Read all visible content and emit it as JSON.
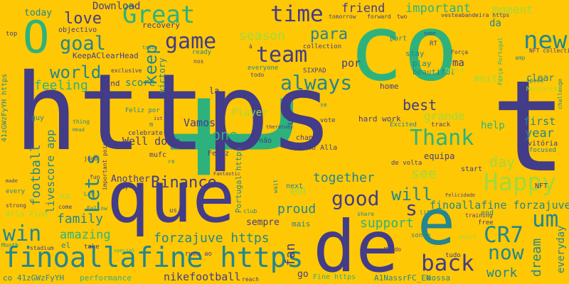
{
  "palette": {
    "background": "#FFC805",
    "navy": "#433C88",
    "teal": "#24868E",
    "green": "#2DB27D",
    "lime": "#9FDA3A",
    "yellowgreen": "#C7E020",
    "pale": "#FDE725"
  },
  "words": [
    {
      "text": "t",
      "color": "green"
    },
    {
      "text": "co",
      "color": "green"
    },
    {
      "text": "https",
      "color": "navy"
    },
    {
      "text": "t",
      "color": "navy"
    },
    {
      "text": "que",
      "color": "navy"
    },
    {
      "text": "de",
      "color": "navy"
    },
    {
      "text": "e",
      "color": "teal"
    },
    {
      "text": "O",
      "color": "green"
    },
    {
      "text": "goal",
      "color": "teal"
    },
    {
      "text": "finoallafine https",
      "color": "teal"
    },
    {
      "text": "Great",
      "color": "green"
    },
    {
      "text": "game",
      "color": "navy"
    },
    {
      "text": "time",
      "color": "navy"
    },
    {
      "text": "team",
      "color": "navy"
    },
    {
      "text": "new",
      "color": "teal"
    },
    {
      "text": "um",
      "color": "teal"
    },
    {
      "text": "CR7",
      "color": "teal"
    },
    {
      "text": "now",
      "color": "teal"
    },
    {
      "text": "back",
      "color": "navy"
    },
    {
      "text": "Happy",
      "color": "lime"
    },
    {
      "text": "Thank",
      "color": "green"
    },
    {
      "text": "always",
      "color": "teal"
    },
    {
      "text": "world",
      "color": "teal"
    },
    {
      "text": "win",
      "color": "teal"
    },
    {
      "text": "good",
      "color": "navy"
    },
    {
      "text": "Binance",
      "color": "navy"
    },
    {
      "text": "will",
      "color": "teal"
    },
    {
      "text": "s",
      "color": "navy"
    },
    {
      "text": "para",
      "color": "teal"
    },
    {
      "text": "love",
      "color": "navy"
    },
    {
      "text": "keep",
      "color": "teal"
    },
    {
      "text": "Let s",
      "color": "teal"
    },
    {
      "text": "friend",
      "color": "navy"
    },
    {
      "text": "important",
      "color": "green"
    },
    {
      "text": "moment",
      "color": "lime"
    },
    {
      "text": "feeling",
      "color": "green"
    },
    {
      "text": "best",
      "color": "navy"
    },
    {
      "text": "grande",
      "color": "lime"
    },
    {
      "text": "one",
      "color": "green"
    },
    {
      "text": "family",
      "color": "teal"
    },
    {
      "text": "forzajuve https",
      "color": "teal"
    },
    {
      "text": "amazing",
      "color": "green"
    },
    {
      "text": "proud",
      "color": "teal"
    },
    {
      "text": "support",
      "color": "green"
    },
    {
      "text": "together",
      "color": "teal"
    },
    {
      "text": "see",
      "color": "lime"
    },
    {
      "text": "em",
      "color": "lime"
    },
    {
      "text": "fan",
      "color": "navy"
    },
    {
      "text": "work",
      "color": "teal"
    },
    {
      "text": "dream",
      "color": "teal"
    },
    {
      "text": "year",
      "color": "teal"
    },
    {
      "text": "first",
      "color": "teal"
    },
    {
      "text": "day",
      "color": "lime"
    },
    {
      "text": "finoallafine forzajuve",
      "color": "teal"
    },
    {
      "text": "season",
      "color": "lime"
    },
    {
      "text": "football",
      "color": "teal"
    },
    {
      "text": "nikefootball",
      "color": "navy"
    },
    {
      "text": "Download",
      "color": "navy"
    },
    {
      "text": "livescore app",
      "color": "teal"
    },
    {
      "text": "Vamos",
      "color": "navy"
    },
    {
      "text": "Well done",
      "color": "navy"
    },
    {
      "text": "score",
      "color": "teal"
    },
    {
      "text": "clear",
      "color": "teal"
    },
    {
      "text": "da",
      "color": "teal"
    },
    {
      "text": "ma",
      "color": "navy"
    },
    {
      "text": "por",
      "color": "navy"
    },
    {
      "text": "muito",
      "color": "lime"
    },
    {
      "text": "help",
      "color": "green"
    },
    {
      "text": "everyday",
      "color": "teal"
    },
    {
      "text": "Player",
      "color": "lime"
    },
    {
      "text": "sempre",
      "color": "navy"
    },
    {
      "text": "today",
      "color": "teal"
    },
    {
      "text": "Another",
      "color": "navy"
    },
    {
      "text": "KeepAClearHead",
      "color": "navy"
    },
    {
      "text": "victory",
      "color": "teal"
    },
    {
      "text": "objectivo",
      "color": "navy"
    },
    {
      "text": "recovery",
      "color": "navy"
    },
    {
      "text": "mind",
      "color": "navy"
    },
    {
      "text": "un",
      "color": "navy"
    },
    {
      "text": "la",
      "color": "navy"
    },
    {
      "text": "home",
      "color": "navy"
    },
    {
      "text": "beautiful",
      "color": "teal"
    },
    {
      "text": "play",
      "color": "teal"
    },
    {
      "text": "stay",
      "color": "teal"
    },
    {
      "text": "part",
      "color": "teal"
    },
    {
      "text": "hard work",
      "color": "navy"
    },
    {
      "text": "Fino Alla",
      "color": "navy"
    },
    {
      "text": "chance",
      "color": "navy"
    },
    {
      "text": "equipa",
      "color": "navy"
    },
    {
      "text": "start",
      "color": "navy"
    },
    {
      "text": "next",
      "color": "teal"
    },
    {
      "text": "mais",
      "color": "teal"
    },
    {
      "text": "go",
      "color": "navy"
    },
    {
      "text": "nossa",
      "color": "teal"
    },
    {
      "text": "A1NassrFC_EN",
      "color": "teal"
    },
    {
      "text": "Fine https",
      "color": "green"
    },
    {
      "text": "performance",
      "color": "green"
    },
    {
      "text": "reach",
      "color": "navy"
    },
    {
      "text": "co 41zGWzFyYH",
      "color": "teal"
    },
    {
      "text": "41zGWzFyYH https",
      "color": "teal"
    },
    {
      "text": "Alla Fine",
      "color": "lime"
    },
    {
      "text": "Portugal https",
      "color": "teal"
    },
    {
      "text": "Feliz",
      "color": "navy"
    },
    {
      "text": "mufc",
      "color": "navy"
    },
    {
      "text": "celebrate",
      "color": "navy"
    },
    {
      "text": "important point",
      "color": "navy"
    },
    {
      "text": "Feliz por",
      "color": "teal"
    },
    {
      "text": "ready",
      "color": "teal"
    },
    {
      "text": "everyone",
      "color": "teal"
    },
    {
      "text": "todo",
      "color": "navy"
    },
    {
      "text": "nos",
      "color": "navy"
    },
    {
      "text": "SIXPAD",
      "color": "navy"
    },
    {
      "text": "collection",
      "color": "navy"
    },
    {
      "text": "RT",
      "color": "navy"
    },
    {
      "text": "NFT collection",
      "color": "navy"
    },
    {
      "text": "NFT",
      "color": "navy"
    },
    {
      "text": "vitória",
      "color": "navy"
    },
    {
      "text": "focused",
      "color": "teal"
    },
    {
      "text": "training",
      "color": "navy"
    },
    {
      "text": "end",
      "color": "teal"
    },
    {
      "text": "free",
      "color": "navy"
    },
    {
      "text": "tudo",
      "color": "navy"
    },
    {
      "text": "sonho",
      "color": "teal"
    },
    {
      "text": "Watch",
      "color": "lime"
    },
    {
      "text": "share",
      "color": "teal"
    },
    {
      "text": "life",
      "color": "teal"
    },
    {
      "text": "club",
      "color": "teal"
    },
    {
      "text": "wait",
      "color": "teal"
    },
    {
      "text": "vote",
      "color": "navy"
    },
    {
      "text": "não",
      "color": "navy"
    },
    {
      "text": "track",
      "color": "navy"
    },
    {
      "text": "Excited",
      "color": "teal"
    },
    {
      "text": "de volta",
      "color": "navy"
    },
    {
      "text": "Felicidade",
      "color": "navy"
    },
    {
      "text": "rumo ao",
      "color": "navy"
    },
    {
      "text": "stadium",
      "color": "navy"
    },
    {
      "text": "Mundo",
      "color": "navy"
    },
    {
      "text": "se",
      "color": "teal"
    },
    {
      "text": "us",
      "color": "navy"
    },
    {
      "text": "take",
      "color": "navy"
    },
    {
      "text": "el",
      "color": "teal"
    },
    {
      "text": "Month",
      "color": "teal"
    },
    {
      "text": "guy",
      "color": "teal"
    },
    {
      "text": "thing",
      "color": "teal"
    },
    {
      "text": "Head",
      "color": "teal"
    },
    {
      "text": "fun",
      "color": "navy"
    },
    {
      "text": "Follow",
      "color": "teal"
    },
    {
      "text": "strong",
      "color": "navy"
    },
    {
      "text": "every",
      "color": "teal"
    },
    {
      "text": "made",
      "color": "navy"
    },
    {
      "text": "top",
      "color": "navy"
    },
    {
      "text": "jogo",
      "color": "navy"
    },
    {
      "text": "Let",
      "color": "teal"
    },
    {
      "text": "come",
      "color": "navy"
    },
    {
      "text": "way",
      "color": "navy"
    },
    {
      "text": "special",
      "color": "green"
    },
    {
      "text": "amp",
      "color": "teal"
    },
    {
      "text": "exclusive",
      "color": "navy"
    },
    {
      "text": "tomorrow",
      "color": "navy"
    },
    {
      "text": "forward",
      "color": "navy"
    },
    {
      "text": "two",
      "color": "navy"
    },
    {
      "text": "soon",
      "color": "navy"
    },
    {
      "text": "Força",
      "color": "navy"
    },
    {
      "text": "Força Portugal",
      "color": "green"
    },
    {
      "text": "Don t",
      "color": "lime"
    },
    {
      "text": "challenge",
      "color": "teal"
    },
    {
      "text": "speed",
      "color": "teal"
    },
    {
      "text": "Mercurial",
      "color": "lime"
    },
    {
      "text": "ist",
      "color": "navy"
    },
    {
      "text": "m",
      "color": "teal"
    },
    {
      "text": "re",
      "color": "teal"
    },
    {
      "text": "na",
      "color": "lime"
    },
    {
      "text": "train",
      "color": "teal"
    },
    {
      "text": "à",
      "color": "navy"
    },
    {
      "text": "vesteabandeira https",
      "color": "navy"
    },
    {
      "text": "theratody",
      "color": "navy"
    },
    {
      "text": "Fantastic",
      "color": "navy"
    }
  ]
}
